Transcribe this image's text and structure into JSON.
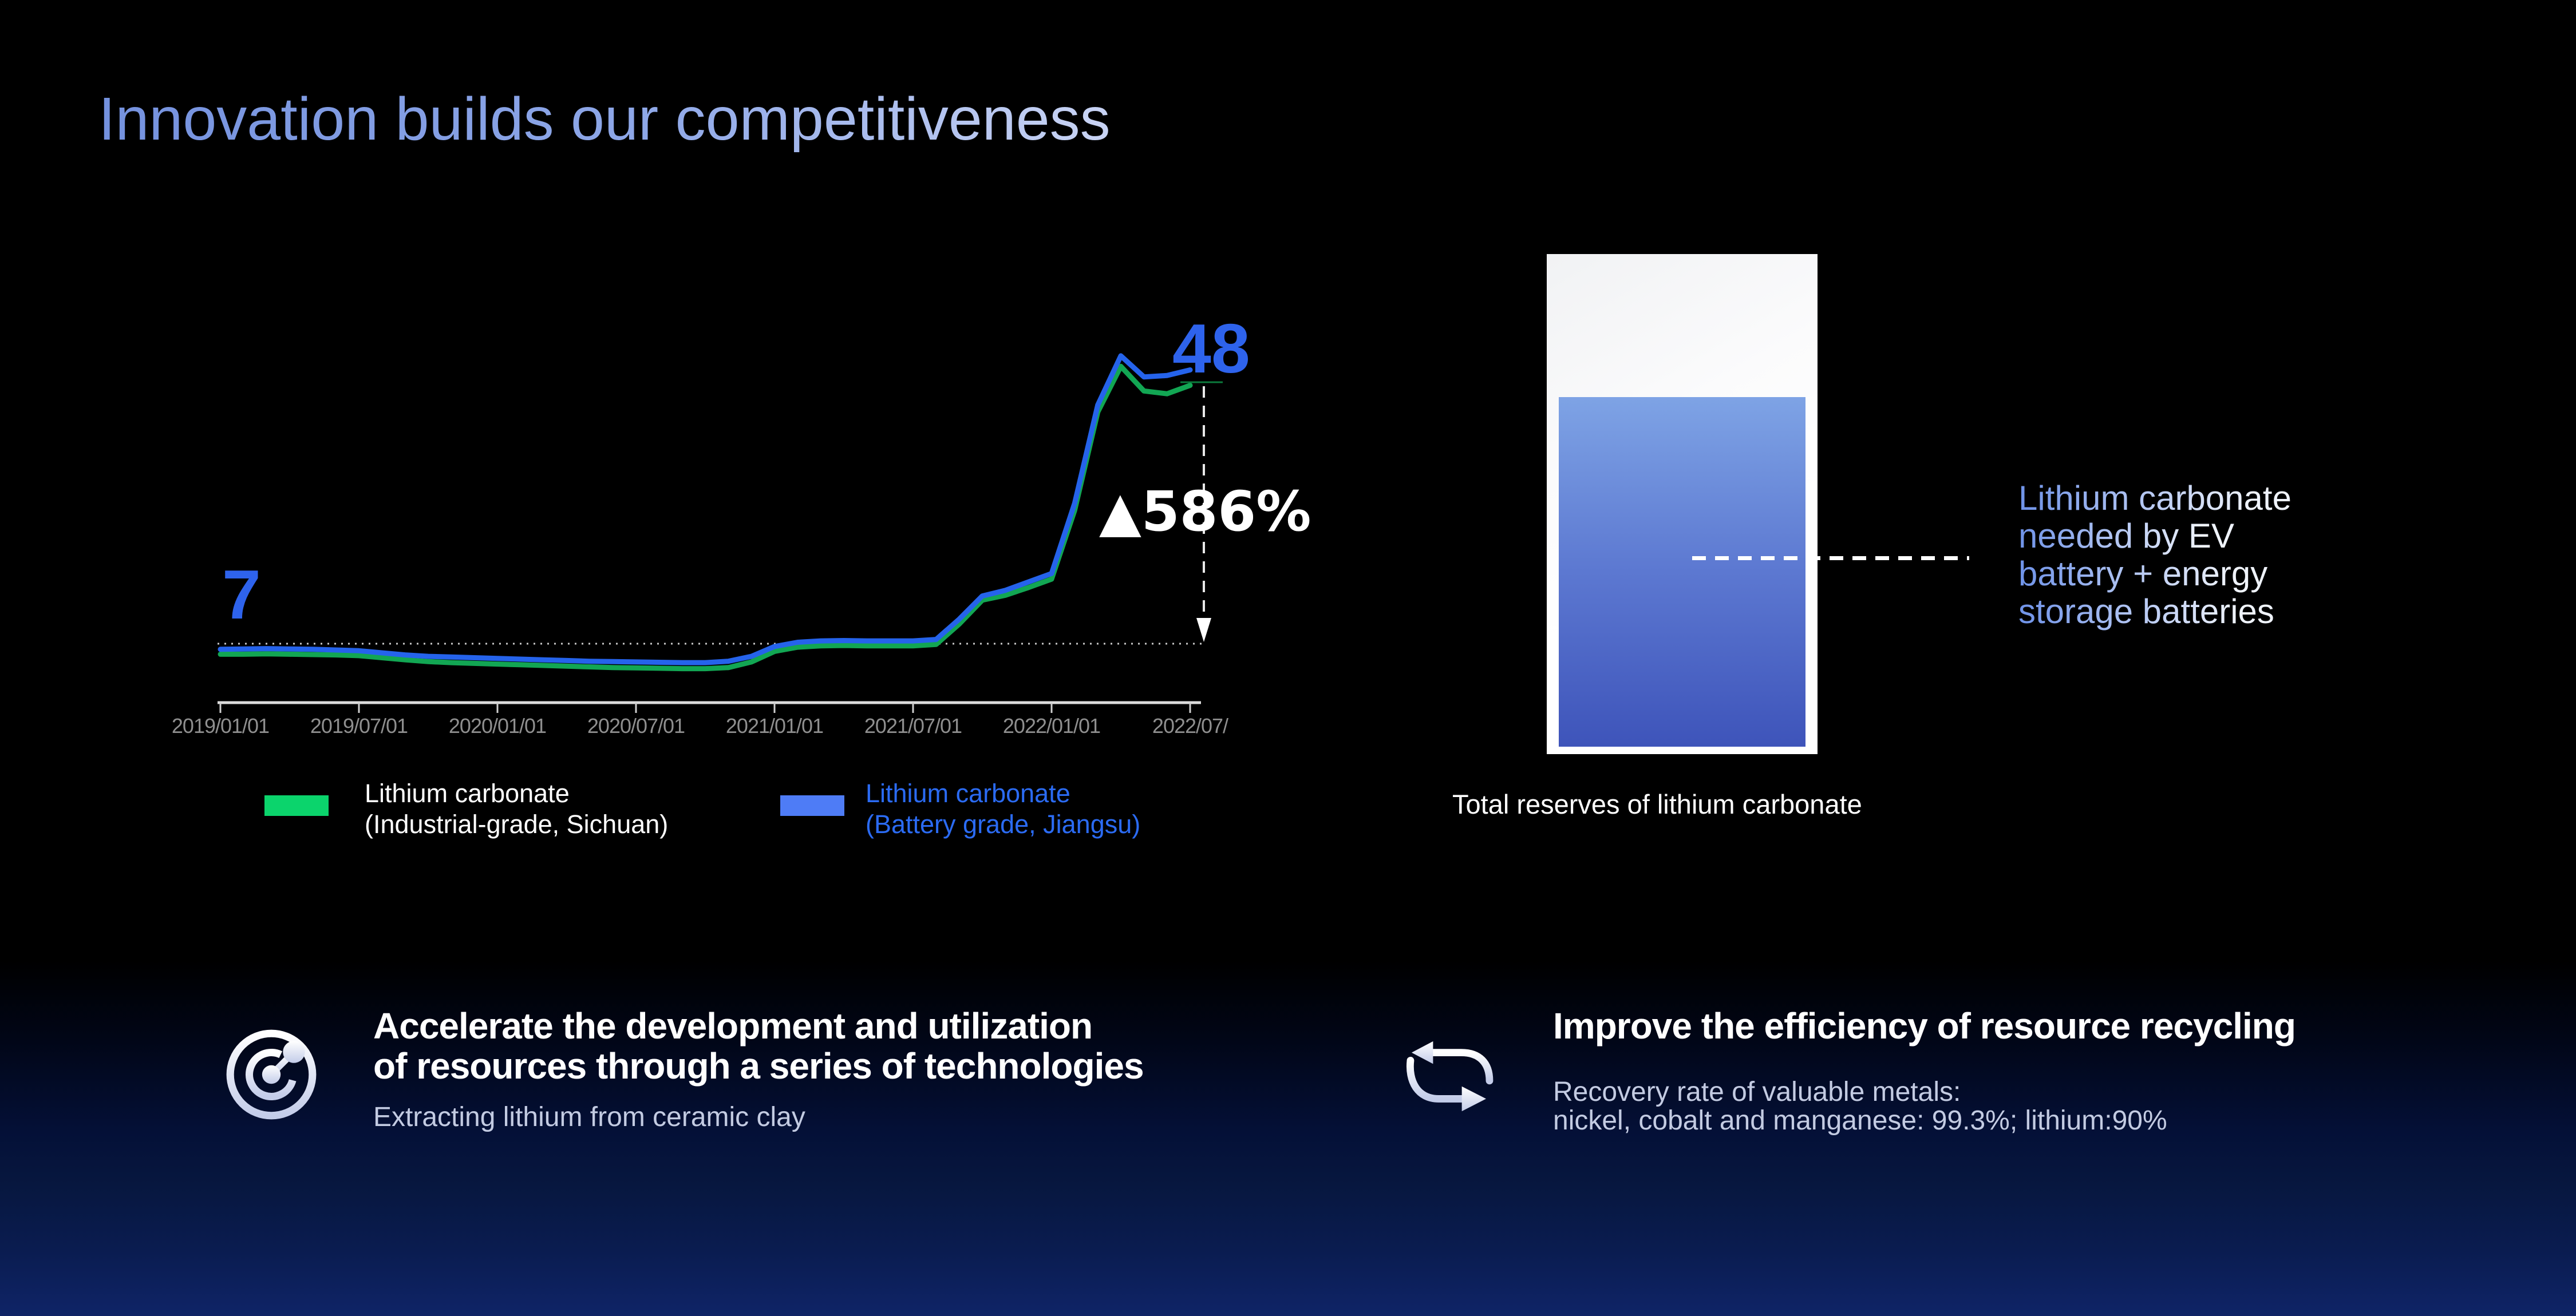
{
  "page": {
    "title": "Innovation builds our competitiveness"
  },
  "chart": {
    "start_label": "7",
    "peak_label": "48",
    "change_label": "▲586%",
    "x_ticks": [
      "2019/01/01",
      "2019/07/01",
      "2020/01/01",
      "2020/07/01",
      "2021/01/01",
      "2021/07/01",
      "2022/01/01",
      "2022/07/"
    ],
    "legend": [
      {
        "label_line1": "Lithium carbonate",
        "label_line2": "(Industrial-grade, Sichuan)",
        "swatch_color": "#0BD46C",
        "text_color": "#FFFFFF"
      },
      {
        "label_line1": "Lithium carbonate",
        "label_line2": "(Battery grade, Jiangsu)",
        "swatch_color": "#4E7CF6",
        "text_color": "#2B6BF3"
      }
    ]
  },
  "chart_data": {
    "type": "line",
    "title": "",
    "xlabel": "",
    "ylabel": "",
    "ylim": [
      0,
      52
    ],
    "grid": false,
    "legend_position": "bottom",
    "x": [
      "2019/01",
      "2019/02",
      "2019/03",
      "2019/04",
      "2019/05",
      "2019/06",
      "2019/07",
      "2019/08",
      "2019/09",
      "2019/10",
      "2019/11",
      "2019/12",
      "2020/01",
      "2020/02",
      "2020/03",
      "2020/04",
      "2020/05",
      "2020/06",
      "2020/07",
      "2020/08",
      "2020/09",
      "2020/10",
      "2020/11",
      "2020/12",
      "2021/01",
      "2021/02",
      "2021/03",
      "2021/04",
      "2021/05",
      "2021/06",
      "2021/07",
      "2021/08",
      "2021/09",
      "2021/10",
      "2021/11",
      "2021/12",
      "2022/01",
      "2022/02",
      "2022/03",
      "2022/04",
      "2022/05",
      "2022/06",
      "2022/07"
    ],
    "x_tick_labels": [
      "2019/01/01",
      "2019/07/01",
      "2020/01/01",
      "2020/07/01",
      "2021/01/01",
      "2021/07/01",
      "2022/01/01",
      "2022/07/"
    ],
    "series": [
      {
        "name": "Lithium carbonate (Industrial-grade, Sichuan)",
        "color": "#12A653",
        "values": [
          5.5,
          5.5,
          5.55,
          5.5,
          5.45,
          5.4,
          5.3,
          5.0,
          4.7,
          4.45,
          4.3,
          4.2,
          4.1,
          4.0,
          3.9,
          3.8,
          3.7,
          3.6,
          3.55,
          3.5,
          3.45,
          3.45,
          3.6,
          4.4,
          5.9,
          6.5,
          6.7,
          6.75,
          6.7,
          6.7,
          6.7,
          6.9,
          9.8,
          13.2,
          13.9,
          15.0,
          16.2,
          26.0,
          40.0,
          46.5,
          43.0,
          42.6,
          43.8
        ]
      },
      {
        "name": "Lithium carbonate (Battery grade, Jiangsu)",
        "color": "#2563EB",
        "values": [
          6.2,
          6.25,
          6.3,
          6.25,
          6.2,
          6.1,
          6.0,
          5.7,
          5.4,
          5.2,
          5.1,
          5.0,
          4.9,
          4.8,
          4.7,
          4.6,
          4.5,
          4.45,
          4.4,
          4.35,
          4.3,
          4.3,
          4.5,
          5.2,
          6.6,
          7.2,
          7.4,
          7.45,
          7.4,
          7.4,
          7.4,
          7.6,
          10.5,
          13.8,
          14.6,
          15.8,
          17.0,
          27.0,
          41.0,
          48.0,
          45.0,
          45.2,
          46.0
        ]
      }
    ],
    "annotations": {
      "start_value": 7,
      "peak_value": 48,
      "change": "▲586%",
      "reference_line_at": 7
    }
  },
  "reserves": {
    "caption": "Total reserves of lithium carbonate",
    "callout_lines": [
      "Lithium carbonate",
      "needed by EV",
      "battery + energy",
      "storage batteries"
    ],
    "fill_top_color": "#7EA3E5",
    "fill_mid_color": "#5C78D1",
    "fill_bottom_color": "#3E54BA"
  },
  "highlights": [
    {
      "icon": "radar",
      "title_lines": [
        "Accelerate the development and utilization",
        "of resources through a series of technologies"
      ],
      "subtitle_lines": [
        "Extracting lithium from ceramic clay"
      ]
    },
    {
      "icon": "recycle",
      "title_lines": [
        "Improve the efficiency of resource recycling"
      ],
      "subtitle_lines": [
        "Recovery rate of valuable metals:",
        "nickel, cobalt and  manganese: 99.3%; lithium:90%"
      ]
    }
  ]
}
